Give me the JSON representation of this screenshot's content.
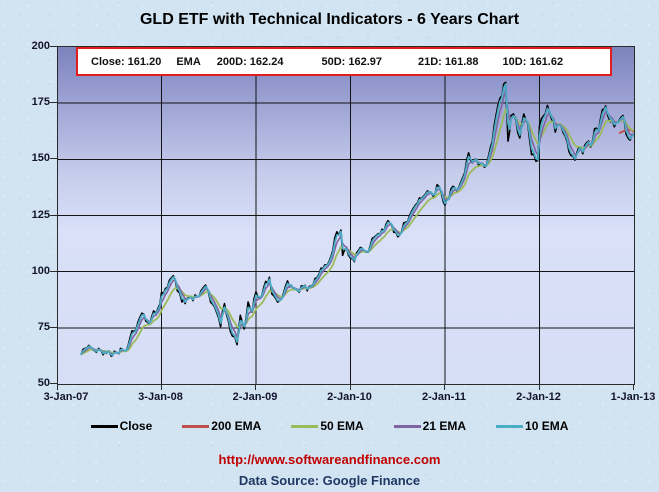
{
  "page": {
    "title": "GLD ETF with Technical Indicators - 6 Years Chart"
  },
  "info_box": {
    "items": [
      "Close: 161.20",
      "EMA",
      "200D: 162.24",
      "50D: 162.97",
      "21D: 161.88",
      "10D: 161.62"
    ],
    "border_color": "#e21b1b"
  },
  "footer": {
    "url": "http://www.softwareandfinance.com",
    "data_source": "Data Source: Google Finance",
    "url_color": "#c00000",
    "source_color": "#1f3864"
  },
  "chart_data": {
    "type": "line",
    "title": "GLD ETF with Technical Indicators - 6 Years Chart",
    "xlabel": "",
    "ylabel": "",
    "ylim": [
      50,
      200
    ],
    "grid": true,
    "legend_position": "bottom",
    "x_axis": {
      "tick_labels": [
        "3-Jan-07",
        "3-Jan-08",
        "2-Jan-09",
        "2-Jan-10",
        "2-Jan-11",
        "2-Jan-12",
        "1-Jan-13"
      ],
      "tick_positions_months": [
        0,
        12,
        24,
        36,
        48,
        60,
        72
      ]
    },
    "y_axis": {
      "tick_labels": [
        "200",
        "175",
        "150",
        "125",
        "100",
        "75",
        "50"
      ],
      "tick_values": [
        200,
        175,
        150,
        125,
        100,
        75,
        50
      ]
    },
    "legend": [
      {
        "label": "Close",
        "color": "#000000"
      },
      {
        "label": "200 EMA",
        "color": "#C0504D"
      },
      {
        "label": "50 EMA",
        "color": "#9BBB59"
      },
      {
        "label": "21 EMA",
        "color": "#8064A2"
      },
      {
        "label": "10 EMA",
        "color": "#4BACC6"
      }
    ],
    "series": [
      {
        "name": "Close",
        "color": "#000000",
        "note": "x = months since Jan-2007, y = GLD price read off chart",
        "points": [
          [
            1.8,
            63.2
          ],
          [
            2.3,
            65.9
          ],
          [
            3,
            66.5
          ],
          [
            3.5,
            64.8
          ],
          [
            4,
            65.8
          ],
          [
            4.6,
            63.0
          ],
          [
            5,
            63.6
          ],
          [
            5.6,
            62.4
          ],
          [
            6,
            64.6
          ],
          [
            6.6,
            63.5
          ],
          [
            7,
            65.6
          ],
          [
            7.5,
            64.7
          ],
          [
            8,
            70.5
          ],
          [
            8.5,
            73.5
          ],
          [
            9,
            77.5
          ],
          [
            9.5,
            81.5
          ],
          [
            10,
            78.0
          ],
          [
            10.5,
            76.5
          ],
          [
            11,
            82.5
          ],
          [
            11.6,
            84.0
          ],
          [
            12,
            90.8
          ],
          [
            12.5,
            92.5
          ],
          [
            13,
            96.2
          ],
          [
            13.5,
            98.2
          ],
          [
            14,
            91.5
          ],
          [
            14.6,
            86.5
          ],
          [
            15,
            85.8
          ],
          [
            15.5,
            88.5
          ],
          [
            16,
            87.1
          ],
          [
            16.5,
            89.0
          ],
          [
            17,
            91.4
          ],
          [
            17.6,
            94.0
          ],
          [
            18,
            90.1
          ],
          [
            18.5,
            85.5
          ],
          [
            19,
            81.9
          ],
          [
            19.5,
            75.5
          ],
          [
            20,
            85.8
          ],
          [
            20.5,
            78.0
          ],
          [
            21,
            71.3
          ],
          [
            21.6,
            67.5
          ],
          [
            22,
            80.6
          ],
          [
            22.5,
            74.5
          ],
          [
            23,
            86.5
          ],
          [
            23.5,
            82.0
          ],
          [
            24,
            91.0
          ],
          [
            24.5,
            88.5
          ],
          [
            25,
            93.2
          ],
          [
            25.7,
            97.5
          ],
          [
            26,
            90.1
          ],
          [
            26.5,
            88.0
          ],
          [
            27,
            87.1
          ],
          [
            27.5,
            90.5
          ],
          [
            28,
            95.9
          ],
          [
            28.5,
            94.0
          ],
          [
            29,
            92.1
          ],
          [
            29.5,
            90.8
          ],
          [
            30,
            93.5
          ],
          [
            30.5,
            91.5
          ],
          [
            31,
            93.6
          ],
          [
            31.5,
            97.0
          ],
          [
            32,
            98.9
          ],
          [
            32.5,
            101.5
          ],
          [
            33,
            102.8
          ],
          [
            33.5,
            106.5
          ],
          [
            34,
            115.1
          ],
          [
            34.8,
            118.5
          ],
          [
            35,
            107.3
          ],
          [
            35.5,
            110.0
          ],
          [
            36,
            106.0
          ],
          [
            36.5,
            104.5
          ],
          [
            37,
            109.4
          ],
          [
            37.5,
            110.5
          ],
          [
            38,
            108.7
          ],
          [
            38.5,
            111.5
          ],
          [
            39,
            115.4
          ],
          [
            39.5,
            117.0
          ],
          [
            40,
            118.9
          ],
          [
            40.5,
            121.0
          ],
          [
            41,
            121.7
          ],
          [
            41.5,
            117.5
          ],
          [
            42,
            115.5
          ],
          [
            42.5,
            118.0
          ],
          [
            43,
            122.0
          ],
          [
            43.5,
            125.0
          ],
          [
            44,
            128.4
          ],
          [
            44.5,
            130.5
          ],
          [
            45,
            132.6
          ],
          [
            45.5,
            134.5
          ],
          [
            46,
            135.4
          ],
          [
            46.5,
            133.5
          ],
          [
            47,
            138.7
          ],
          [
            47.6,
            134.0
          ],
          [
            48,
            129.6
          ],
          [
            48.5,
            132.5
          ],
          [
            49,
            138.0
          ],
          [
            49.5,
            136.0
          ],
          [
            50,
            139.8
          ],
          [
            50.5,
            144.0
          ],
          [
            51,
            152.9
          ],
          [
            51.5,
            148.5
          ],
          [
            52,
            150.0
          ],
          [
            52.5,
            148.0
          ],
          [
            53,
            146.5
          ],
          [
            53.5,
            151.0
          ],
          [
            54,
            158.1
          ],
          [
            54.5,
            170.0
          ],
          [
            55,
            177.3
          ],
          [
            55.7,
            184.3
          ],
          [
            56,
            158.1
          ],
          [
            56.4,
            169.5
          ],
          [
            57,
            167.4
          ],
          [
            57.5,
            159.5
          ],
          [
            58,
            170.2
          ],
          [
            58.5,
            166.0
          ],
          [
            59,
            152.0
          ],
          [
            59.8,
            149.5
          ],
          [
            60,
            165.0
          ],
          [
            60.5,
            169.3
          ],
          [
            61,
            174.0
          ],
          [
            61.8,
            166.4
          ],
          [
            62,
            162.1
          ],
          [
            62.5,
            165.5
          ],
          [
            63,
            161.9
          ],
          [
            63.5,
            158.0
          ],
          [
            64,
            151.7
          ],
          [
            64.5,
            149.6
          ],
          [
            65,
            155.4
          ],
          [
            65.5,
            152.5
          ],
          [
            66,
            157.5
          ],
          [
            66.5,
            155.5
          ],
          [
            67,
            163.6
          ],
          [
            67.5,
            162.5
          ],
          [
            68,
            172.2
          ],
          [
            68.4,
            173.8
          ],
          [
            69,
            166.7
          ],
          [
            69.5,
            164.5
          ],
          [
            70,
            166.6
          ],
          [
            70.6,
            169.5
          ],
          [
            71,
            161.2
          ],
          [
            71.5,
            158.5
          ],
          [
            72,
            161.2
          ]
        ]
      },
      {
        "name": "200 EMA",
        "color": "#C0504D",
        "note": "only visible near right edge of chart",
        "points": [
          [
            70.2,
            161.8
          ],
          [
            71.0,
            163.0
          ],
          [
            71.6,
            163.3
          ],
          [
            72,
            162.3
          ]
        ]
      },
      {
        "name": "50 EMA",
        "color": "#9BBB59",
        "derived_from": "Close",
        "ema_span_days": 50
      },
      {
        "name": "21 EMA",
        "color": "#8064A2",
        "derived_from": "Close",
        "ema_span_days": 21
      },
      {
        "name": "10 EMA",
        "color": "#4BACC6",
        "derived_from": "Close",
        "ema_span_days": 10
      }
    ]
  }
}
